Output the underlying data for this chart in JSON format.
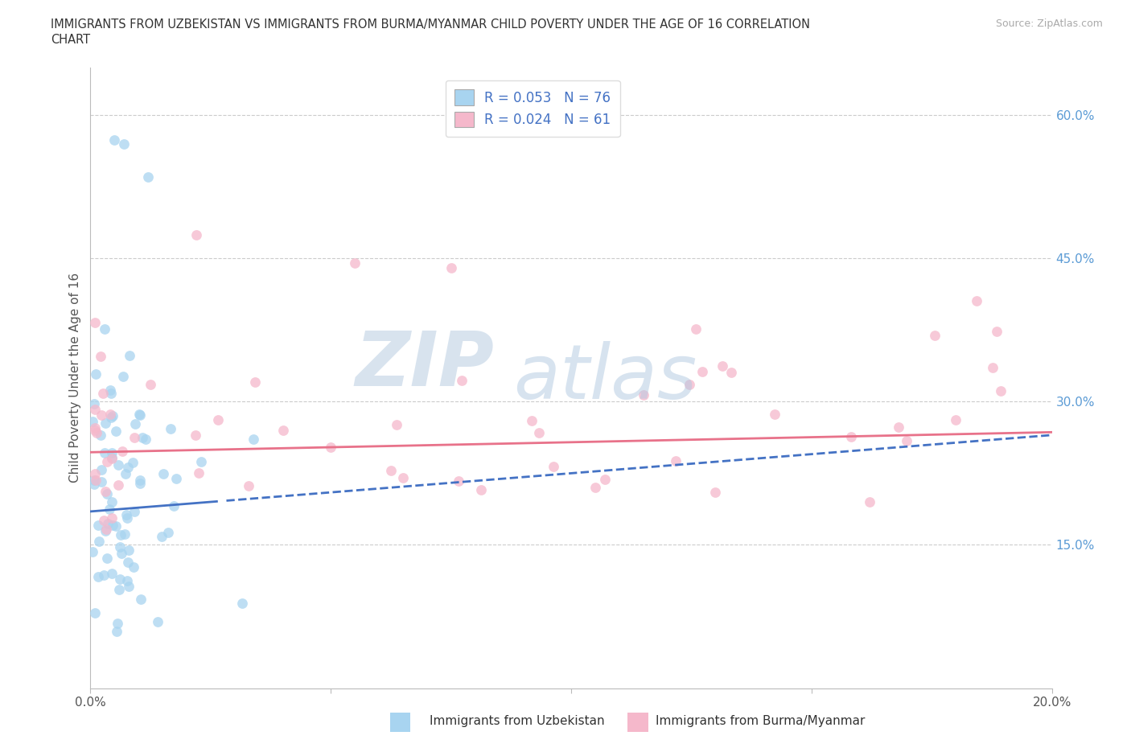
{
  "title_line1": "IMMIGRANTS FROM UZBEKISTAN VS IMMIGRANTS FROM BURMA/MYANMAR CHILD POVERTY UNDER THE AGE OF 16 CORRELATION",
  "title_line2": "CHART",
  "source": "Source: ZipAtlas.com",
  "ylabel": "Child Poverty Under the Age of 16",
  "xmin": 0.0,
  "xmax": 0.2,
  "ymin": 0.0,
  "ymax": 0.65,
  "color_uzbekistan": "#a8d4f0",
  "color_burma": "#f5b8cb",
  "color_line_uzbekistan": "#4472c4",
  "color_line_burma": "#e8728a",
  "watermark_zip": "ZIP",
  "watermark_atlas": "atlas",
  "legend_text1": "R = 0.053   N = 76",
  "legend_text2": "R = 0.024   N = 61",
  "bottom_label1": "Immigrants from Uzbekistan",
  "bottom_label2": "Immigrants from Burma/Myanmar"
}
